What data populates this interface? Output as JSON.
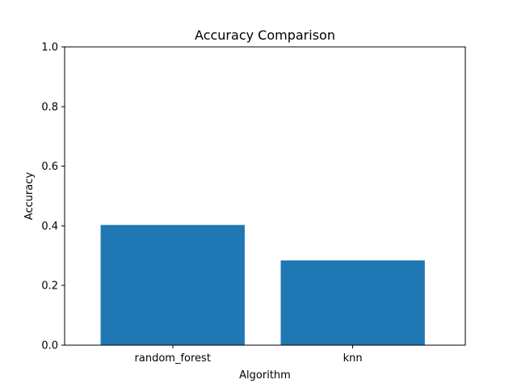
{
  "chart_data": {
    "type": "bar",
    "title": "Accuracy Comparison",
    "xlabel": "Algorithm",
    "ylabel": "Accuracy",
    "categories": [
      "random_forest",
      "knn"
    ],
    "values": [
      0.403,
      0.284
    ],
    "ylim": [
      0,
      1
    ],
    "yticks": [
      "0.0",
      "0.2",
      "0.4",
      "0.6",
      "0.8",
      "1.0"
    ],
    "grid": false,
    "legend": "none",
    "bar_color": "#1f77b4"
  }
}
